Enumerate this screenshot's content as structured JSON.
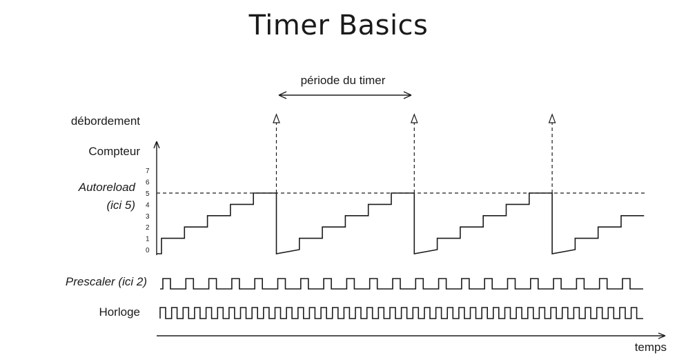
{
  "title": "Timer Basics",
  "labels": {
    "periode": "période du timer",
    "debordement": "débordement",
    "compteur": "Compteur",
    "autoreload": "Autoreload",
    "ici5": "(ici 5)",
    "prescaler": "Prescaler (ici 2)",
    "horloge": "Horloge",
    "temps": "temps"
  },
  "counter_ticks": [
    "0",
    "1",
    "2",
    "3",
    "4",
    "5",
    "6",
    "7"
  ],
  "counter_sequence": [
    0,
    1,
    2,
    3,
    4,
    5,
    0,
    1,
    2,
    3,
    4,
    5,
    0,
    1,
    2,
    3,
    4,
    5,
    0,
    1,
    2,
    3
  ],
  "autoreload_value": 5,
  "overflow_count": 3,
  "prescaler_pulses": 21,
  "clock_pulses": 42
}
